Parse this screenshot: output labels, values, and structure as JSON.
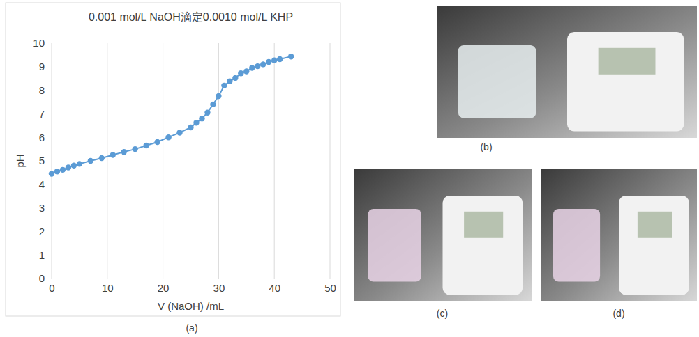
{
  "chart_data": {
    "type": "line",
    "title": "0.001 mol/L NaOH滴定0.0010 mol/L KHP",
    "x_label": "V (NaOH) /mL",
    "y_label": "pH",
    "annotations": [
      "(a)"
    ],
    "x": [
      0,
      1,
      2,
      3,
      4,
      5,
      7,
      9,
      11,
      13,
      15,
      17,
      19,
      21,
      23,
      25,
      26,
      27,
      28,
      29,
      30,
      31,
      32,
      33,
      34,
      35,
      36,
      37,
      38,
      39,
      40,
      41,
      43
    ],
    "values": [
      4.45,
      4.55,
      4.62,
      4.72,
      4.8,
      4.87,
      5.0,
      5.12,
      5.25,
      5.38,
      5.5,
      5.65,
      5.8,
      6.0,
      6.2,
      6.42,
      6.62,
      6.8,
      7.05,
      7.4,
      7.75,
      8.2,
      8.38,
      8.52,
      8.72,
      8.8,
      8.95,
      9.02,
      9.1,
      9.2,
      9.27,
      9.32,
      9.43
    ],
    "color": "#5b9bd5",
    "marker": "circle",
    "line_style": "solid",
    "xlim": [
      0,
      50
    ],
    "xticks": [
      0,
      10,
      20,
      30,
      40,
      50
    ],
    "ylim": [
      0,
      10
    ],
    "yticks": [
      0,
      1,
      2,
      3,
      4,
      5,
      6,
      7,
      8,
      9,
      10
    ],
    "grid": "x"
  },
  "photos": [
    {
      "label": "(b)"
    },
    {
      "label": "(c)"
    },
    {
      "label": "(d)"
    }
  ]
}
